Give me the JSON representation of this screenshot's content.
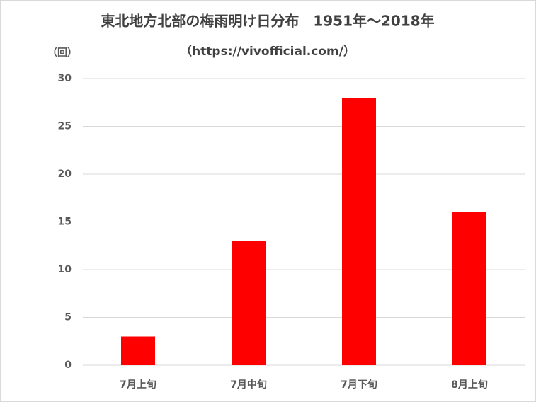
{
  "chart_data": {
    "type": "bar",
    "title": "東北地方北部の梅雨明け日分布　1951年～2018年",
    "subtitle": "（https://vivofficial.com/）",
    "y_label": "（回）",
    "categories": [
      "7月上旬",
      "7月中旬",
      "7月下旬",
      "8月上旬"
    ],
    "values": [
      3,
      13,
      28,
      16
    ],
    "color": "#ff0000",
    "ylim": [
      0,
      30
    ],
    "yticks": [
      0,
      5,
      10,
      15,
      20,
      25,
      30
    ],
    "grid": true
  }
}
